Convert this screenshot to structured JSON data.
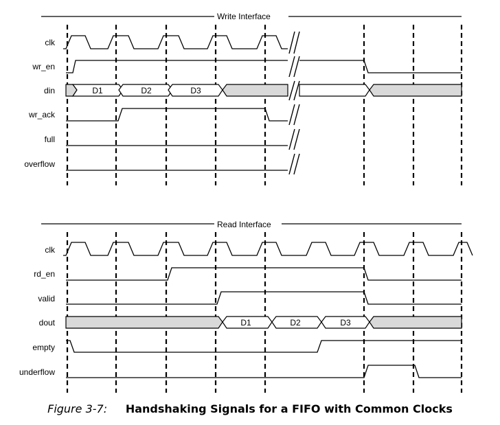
{
  "write_interface": {
    "title": "Write Interface",
    "signals": [
      "clk",
      "wr_en",
      "din",
      "wr_ack",
      "full",
      "overflow"
    ],
    "din_words": [
      "D1",
      "D2",
      "D3"
    ]
  },
  "read_interface": {
    "title": "Read Interface",
    "signals": [
      "clk",
      "rd_en",
      "valid",
      "dout",
      "empty",
      "underflow"
    ],
    "dout_words": [
      "D1",
      "D2",
      "D3"
    ]
  },
  "caption": {
    "figure_number": "Figure 3-7:",
    "title": "Handshaking Signals for a FIFO with Common Clocks"
  },
  "colors": {
    "line": "#000000",
    "bus_fill_busy": "#d9d9d9",
    "bus_fill_data": "#ffffff"
  }
}
